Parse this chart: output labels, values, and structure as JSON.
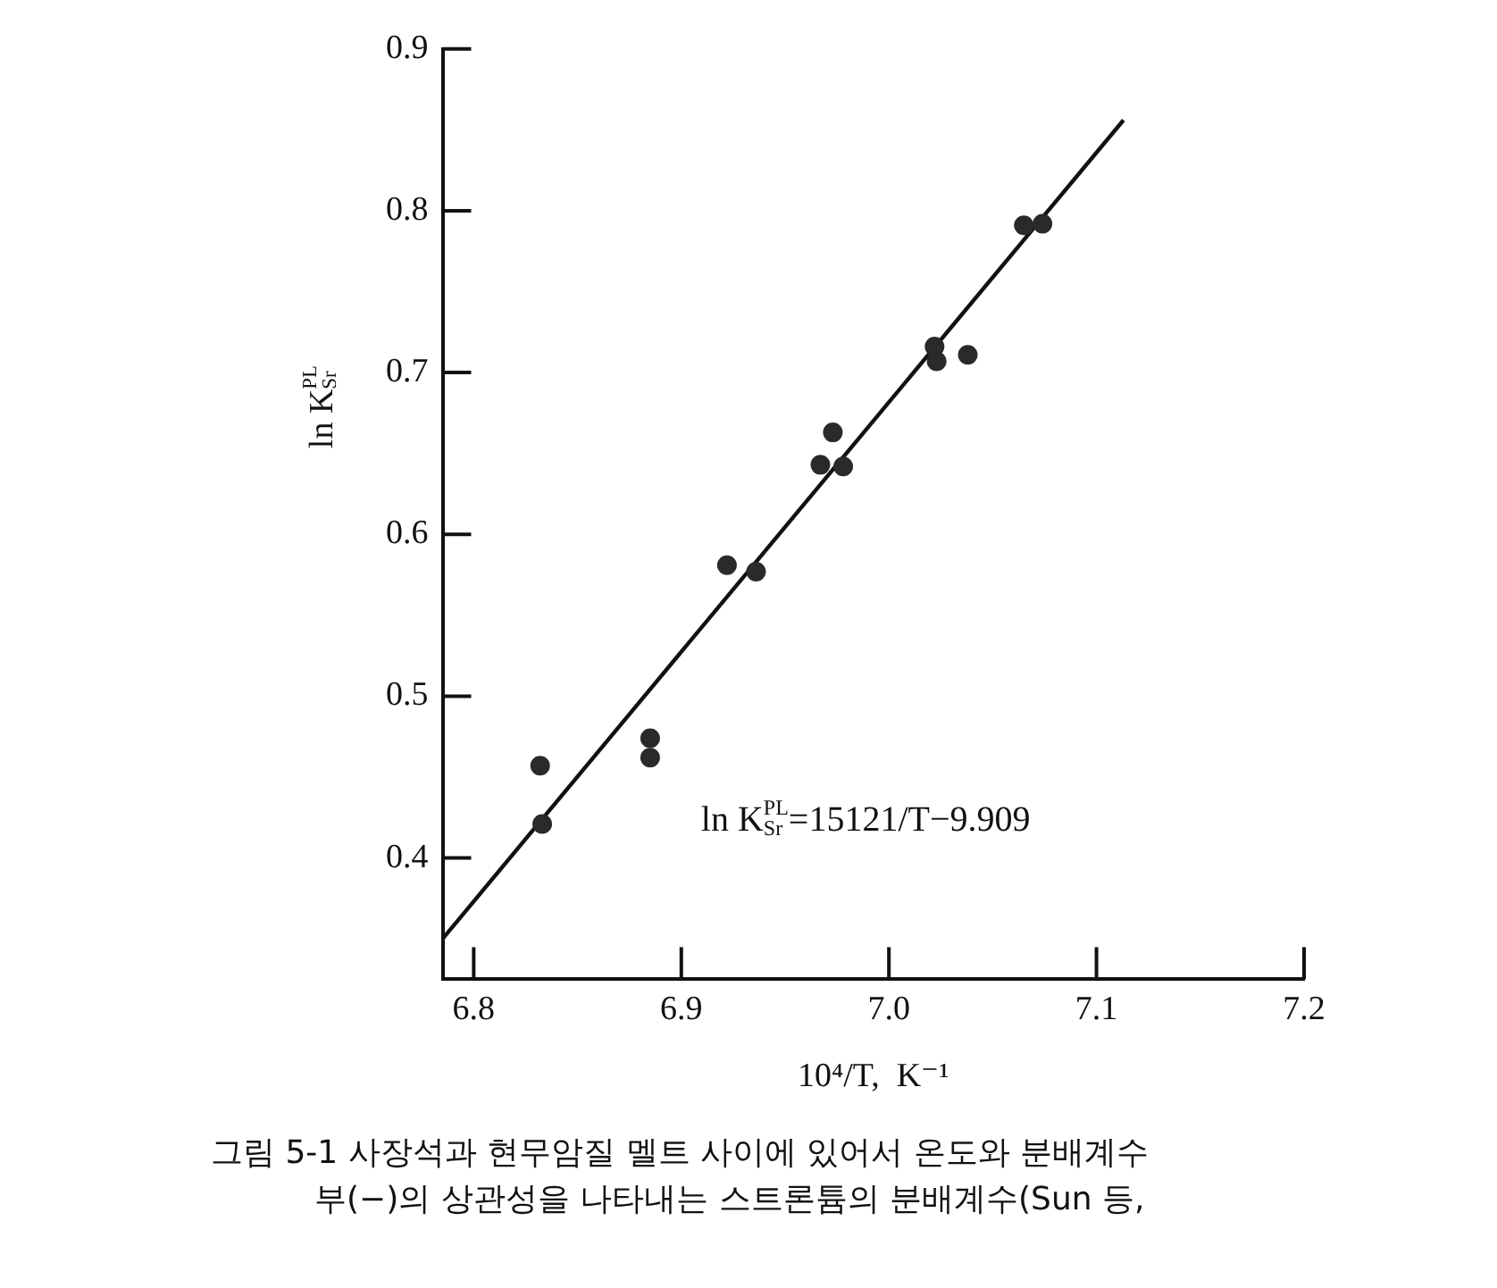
{
  "chart_data": {
    "type": "scatter",
    "xlabel": "10⁴/T,  K⁻¹",
    "ylabel": "ln K$^{PL}$$_{Sr}$",
    "xlim": [
      6.785,
      7.2
    ],
    "xticks": [
      6.8,
      6.9,
      {
        "value": 7,
        "label": "7.0"
      },
      7.1,
      7.2
    ],
    "ylim": [
      0.325,
      0.9
    ],
    "yticks": [
      0.4,
      0.5,
      0.6,
      0.7,
      0.8,
      0.9
    ],
    "grid": false,
    "legend": false,
    "marker": "circle",
    "series": [
      {
        "color": "#2a2a2a",
        "x": [
          7.065,
          7.074,
          7.022,
          7.023,
          7.038,
          6.973,
          6.967,
          6.978,
          6.922,
          6.936,
          6.832,
          6.833,
          6.885,
          6.885
        ],
        "values": [
          0.791,
          0.792,
          0.716,
          0.707,
          0.711,
          0.663,
          0.643,
          0.642,
          0.581,
          0.577,
          0.457,
          0.421,
          0.474,
          0.462
        ]
      },
      {
        "type": "line",
        "color": "#111111",
        "marker": "none",
        "line_style": "solid",
        "x": [
          6.785,
          7.113
        ],
        "values": [
          0.35,
          0.856
        ]
      }
    ],
    "annotations": [
      "ln K$^{PL}$$_{Sr}$=15121/T−9.909",
      "그림 5-1  사장석과 현무암질 멜트 사이에 있어서 온도와 분배계수",
      "부(−)의 상관성을 나타내는 스트론튬의 분배계수(Sun 등,"
    ]
  }
}
